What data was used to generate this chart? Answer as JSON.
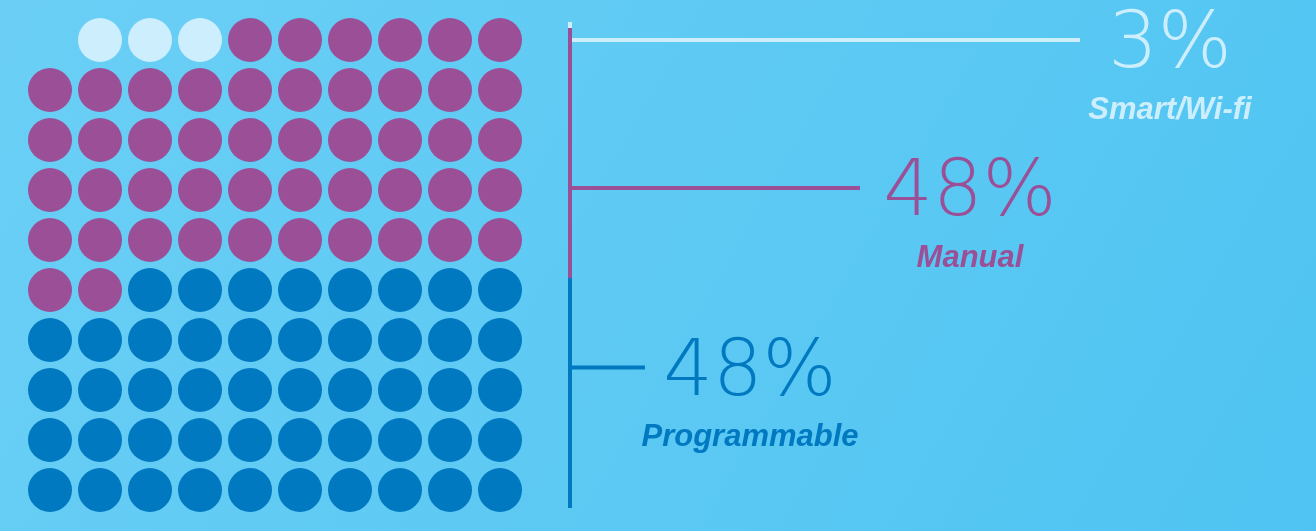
{
  "chart_data": {
    "type": "other",
    "categories": [
      "Smart/Wi-fi",
      "Manual",
      "Programmable"
    ],
    "values": [
      3,
      48,
      48
    ],
    "colors": [
      "#cdeefc",
      "#9b4f96",
      "#0079c1"
    ],
    "value_labels": [
      "3%",
      "48%",
      "48%"
    ]
  }
}
